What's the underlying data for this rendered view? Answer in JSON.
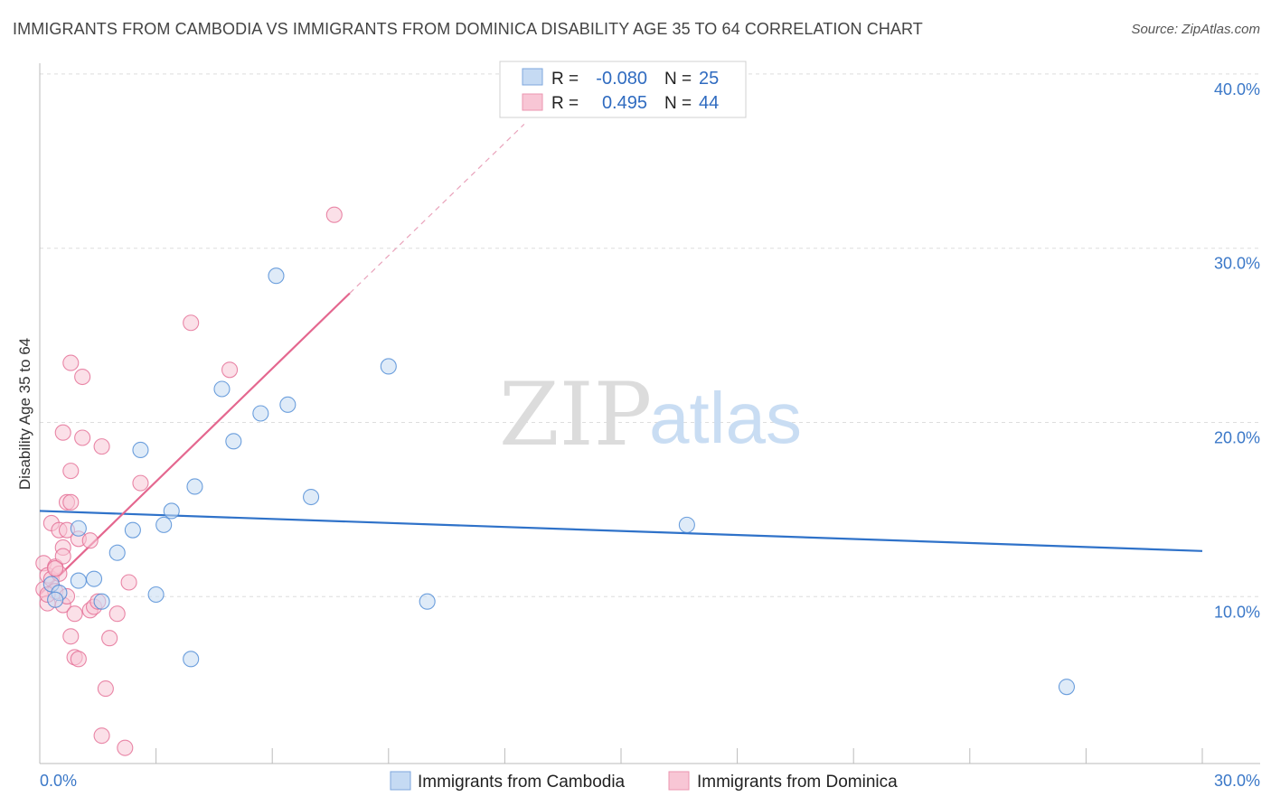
{
  "header": {
    "title": "IMMIGRANTS FROM CAMBODIA VS IMMIGRANTS FROM DOMINICA DISABILITY AGE 35 TO 64 CORRELATION CHART",
    "source": "Source: ZipAtlas.com"
  },
  "watermark": {
    "zip": "ZIP",
    "atlas": "atlas"
  },
  "legend": {
    "rows": [
      {
        "r_label": "R =",
        "r_value": "-0.080",
        "n_label": "N =",
        "n_value": "25",
        "color": "#a8c8ef"
      },
      {
        "r_label": "R =",
        "r_value": "0.495",
        "n_label": "N =",
        "n_value": "44",
        "color": "#f5b6c8"
      }
    ]
  },
  "chart_data": {
    "type": "scatter",
    "title": "IMMIGRANTS FROM CAMBODIA VS IMMIGRANTS FROM DOMINICA DISABILITY AGE 35 TO 64 CORRELATION CHART",
    "xlabel": "",
    "ylabel": "Disability Age 35 to 64",
    "xlim": [
      0,
      30
    ],
    "ylim": [
      1.3,
      41.5
    ],
    "x_tick_labels": [
      "0.0%",
      "30.0%"
    ],
    "y_ticks": [
      10,
      20,
      30,
      40
    ],
    "y_tick_labels": [
      "10.0%",
      "20.0%",
      "30.0%",
      "40.0%"
    ],
    "grid": true,
    "legend_position": "top-center",
    "series": [
      {
        "name": "Immigrants from Cambodia",
        "color": "#4a88d4",
        "fill": "#c5daf3",
        "r": -0.08,
        "n": 25,
        "points": [
          [
            0.3,
            11.6
          ],
          [
            0.5,
            11.1
          ],
          [
            0.4,
            10.7
          ],
          [
            1.0,
            11.8
          ],
          [
            1.4,
            11.9
          ],
          [
            1.0,
            14.8
          ],
          [
            1.6,
            10.6
          ],
          [
            2.0,
            13.4
          ],
          [
            2.4,
            14.7
          ],
          [
            2.6,
            19.3
          ],
          [
            3.0,
            11.0
          ],
          [
            3.2,
            15.0
          ],
          [
            3.4,
            15.8
          ],
          [
            3.9,
            7.3
          ],
          [
            4.0,
            17.2
          ],
          [
            4.7,
            22.8
          ],
          [
            5.0,
            19.8
          ],
          [
            5.7,
            21.4
          ],
          [
            6.1,
            29.3
          ],
          [
            6.4,
            21.9
          ],
          [
            7.0,
            16.6
          ],
          [
            9.0,
            24.1
          ],
          [
            10.0,
            10.6
          ],
          [
            16.7,
            15.0
          ],
          [
            26.5,
            5.7
          ]
        ],
        "trend": {
          "x1": 0,
          "y1": 15.8,
          "x2": 30,
          "y2": 13.5
        }
      },
      {
        "name": "Immigrants from Dominica",
        "color": "#e46a92",
        "fill": "#f8c6d5",
        "r": 0.495,
        "n": 44,
        "points": [
          [
            0.1,
            11.3
          ],
          [
            0.1,
            12.8
          ],
          [
            0.2,
            12.1
          ],
          [
            0.2,
            10.5
          ],
          [
            0.3,
            11.9
          ],
          [
            0.3,
            15.1
          ],
          [
            0.4,
            12.6
          ],
          [
            0.4,
            11.2
          ],
          [
            0.5,
            12.2
          ],
          [
            0.5,
            14.7
          ],
          [
            0.6,
            13.7
          ],
          [
            0.6,
            13.2
          ],
          [
            0.6,
            10.4
          ],
          [
            0.7,
            10.9
          ],
          [
            0.6,
            20.3
          ],
          [
            0.7,
            16.3
          ],
          [
            0.7,
            14.7
          ],
          [
            0.8,
            18.1
          ],
          [
            0.8,
            8.6
          ],
          [
            0.8,
            16.3
          ],
          [
            0.8,
            24.3
          ],
          [
            0.9,
            7.4
          ],
          [
            0.9,
            9.9
          ],
          [
            1.0,
            14.2
          ],
          [
            1.0,
            7.3
          ],
          [
            1.1,
            20.0
          ],
          [
            1.1,
            23.5
          ],
          [
            1.3,
            14.1
          ],
          [
            1.3,
            10.1
          ],
          [
            1.4,
            10.3
          ],
          [
            1.5,
            10.6
          ],
          [
            1.6,
            19.5
          ],
          [
            1.6,
            2.9
          ],
          [
            1.7,
            5.6
          ],
          [
            1.8,
            8.5
          ],
          [
            2.0,
            9.9
          ],
          [
            2.2,
            2.2
          ],
          [
            2.3,
            11.7
          ],
          [
            2.6,
            17.4
          ],
          [
            3.9,
            26.6
          ],
          [
            4.9,
            23.9
          ],
          [
            7.6,
            32.8
          ],
          [
            0.2,
            11.0
          ],
          [
            0.4,
            12.5
          ]
        ],
        "trend": {
          "x1": 0,
          "y1": 11.0,
          "x2": 8.0,
          "y2": 28.3,
          "dash_x2": 12.5,
          "dash_y2": 38.0
        }
      }
    ]
  }
}
